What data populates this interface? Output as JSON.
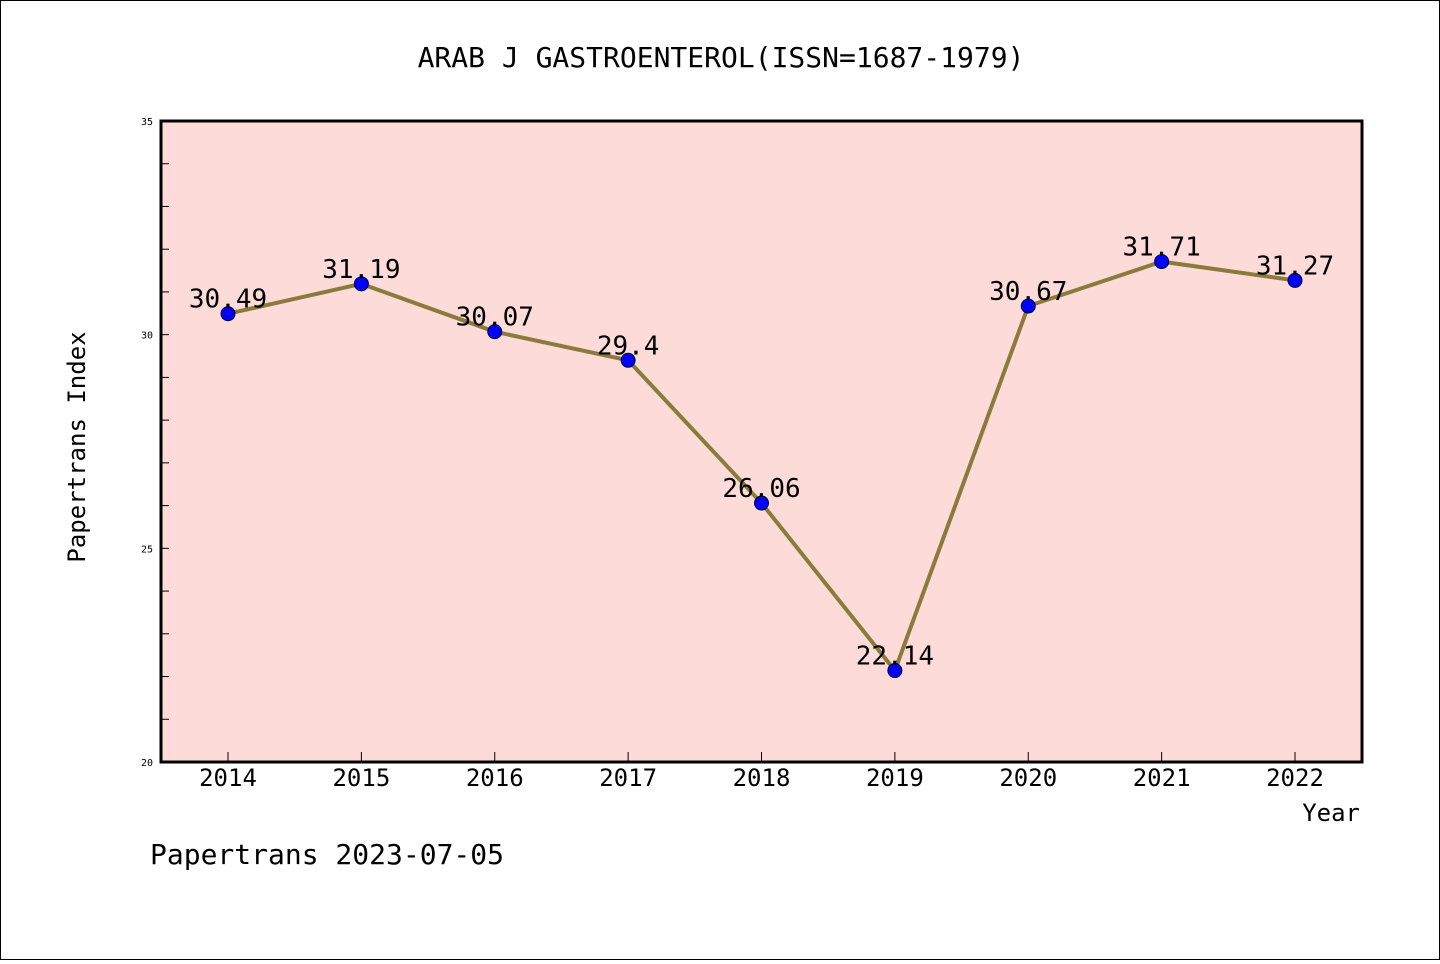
{
  "chart_data": {
    "type": "line",
    "title": "ARAB J GASTROENTEROL(ISSN=1687-1979)",
    "xlabel": "Year",
    "ylabel": "Papertrans Index",
    "categories": [
      "2014",
      "2015",
      "2016",
      "2017",
      "2018",
      "2019",
      "2020",
      "2021",
      "2022"
    ],
    "values": [
      30.49,
      31.19,
      30.07,
      29.4,
      26.06,
      22.14,
      30.67,
      31.71,
      31.27
    ],
    "data_labels": [
      "30.49",
      "31.19",
      "30.07",
      "29.4",
      "26.06",
      "22.14",
      "30.67",
      "31.71",
      "31.27"
    ],
    "ylim": [
      20,
      35
    ],
    "yticks": [
      "20",
      "25",
      "30",
      "35"
    ],
    "grid": false,
    "colors": {
      "plot_background": "#fddbd9",
      "line": "#8b7b3a",
      "marker": "#0000ff"
    }
  },
  "footer": "Papertrans 2023-07-05"
}
